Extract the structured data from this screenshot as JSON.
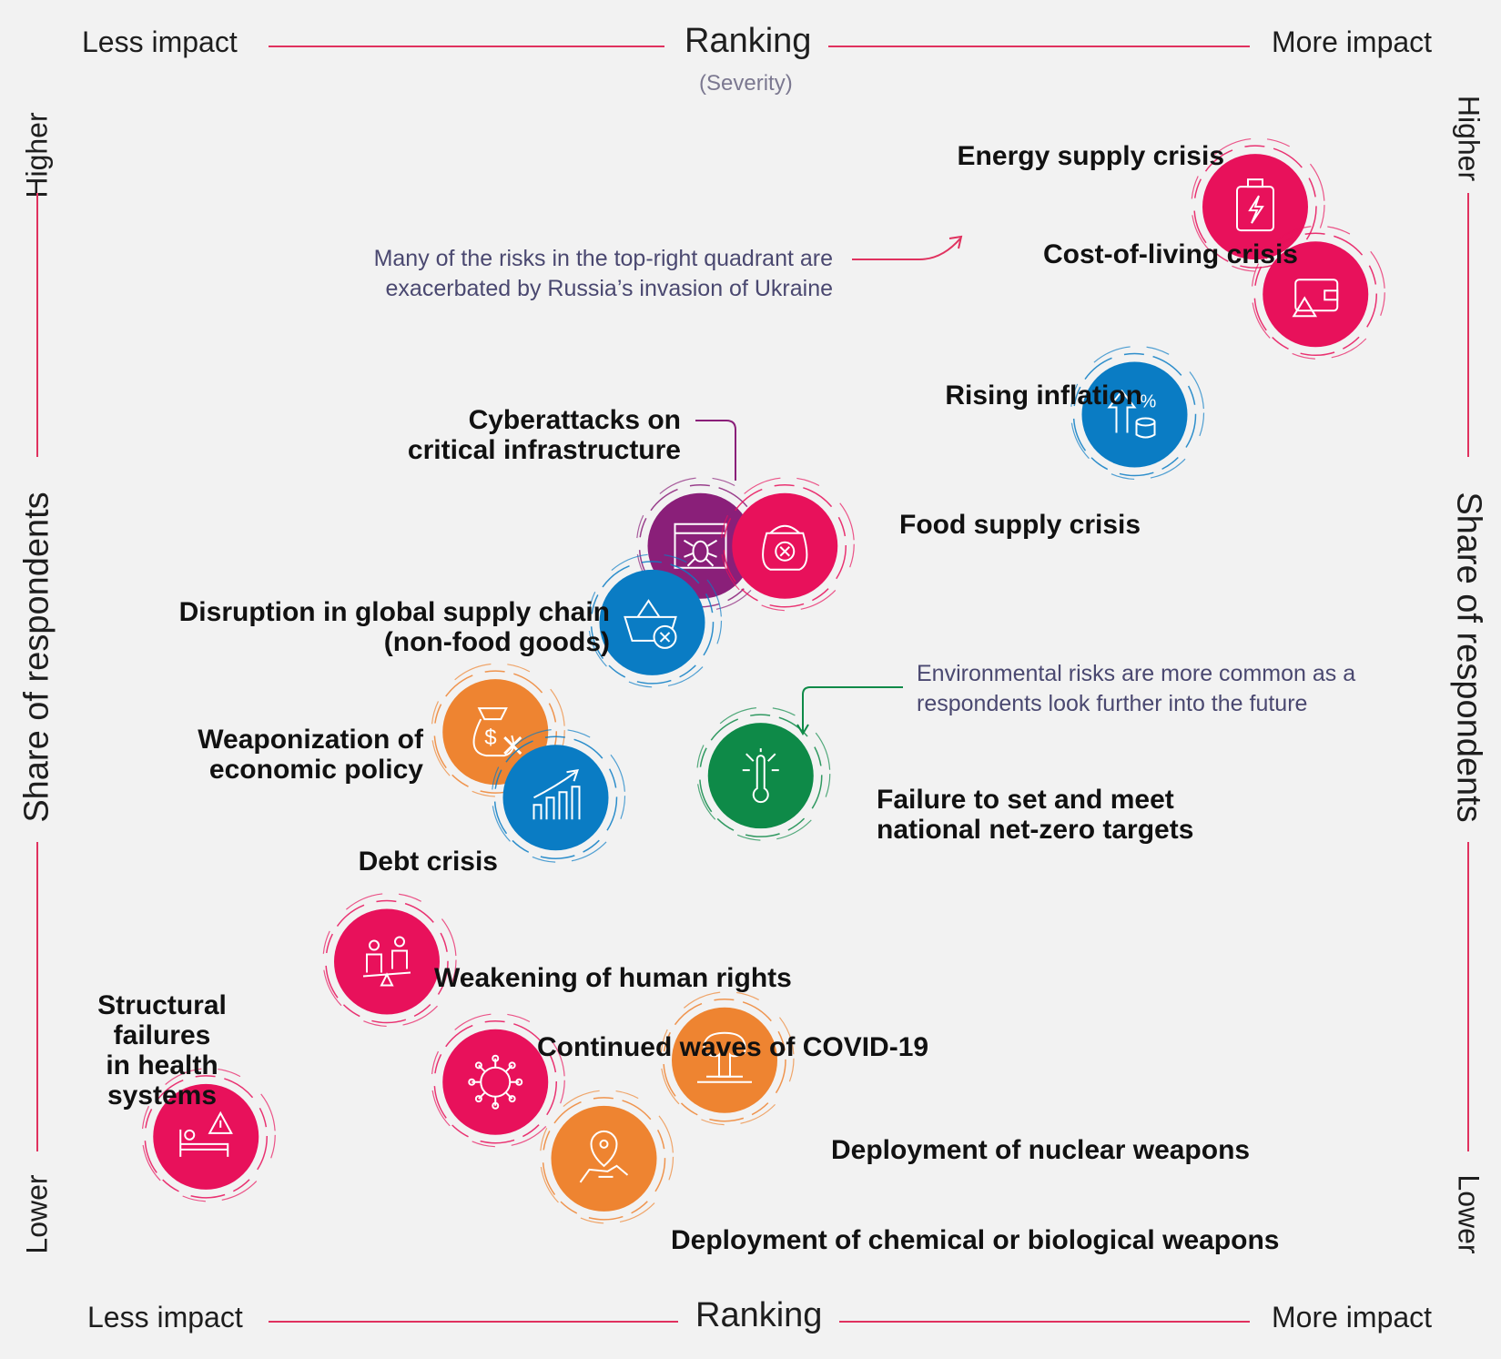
{
  "axes": {
    "top": {
      "title": "Ranking",
      "subtitle": "(Severity)",
      "left": "Less impact",
      "right": "More impact"
    },
    "bottom": {
      "title": "Ranking",
      "left": "Less impact",
      "right": "More impact"
    },
    "left": {
      "title": "Share of respondents",
      "top": "Higher",
      "bottom": "Lower"
    },
    "right": {
      "title": "Share of respondents",
      "top": "Higher",
      "bottom": "Lower"
    }
  },
  "annotations": {
    "ukraine": {
      "line1": "Many of the risks in the top-right quadrant are",
      "line2": "exacerbated by Russia’s invasion of Ukraine"
    },
    "environment": {
      "line1": "Environmental risks are more common as a",
      "line2": "respondents look further into the future"
    }
  },
  "colors": {
    "pink": "#e8115b",
    "blue": "#0a7cc4",
    "purple": "#8a1f79",
    "orange": "#ee8431",
    "green": "#0e8a48",
    "axis_line": "#e0325f"
  },
  "chart_data": {
    "type": "scatter",
    "x_axis": "Ranking (Severity): Less impact → More impact",
    "y_axis": "Share of respondents: Lower → Higher",
    "points": [
      {
        "id": "energy",
        "name": "Energy supply crisis",
        "x": 0.92,
        "y": 0.93,
        "color": "pink",
        "icon": "fuel-barrel-lightning-icon"
      },
      {
        "id": "cost",
        "name": "Cost-of-living crisis",
        "x": 0.97,
        "y": 0.85,
        "color": "pink",
        "icon": "wallet-warning-icon"
      },
      {
        "id": "inflation",
        "name": "Rising inflation",
        "x": 0.82,
        "y": 0.74,
        "color": "blue",
        "icon": "arrow-percent-coins-icon"
      },
      {
        "id": "cyber",
        "name": "Cyberattacks on critical infrastructure",
        "x": 0.46,
        "y": 0.62,
        "color": "purple",
        "icon": "bug-browser-icon"
      },
      {
        "id": "food",
        "name": "Food supply crisis",
        "x": 0.53,
        "y": 0.62,
        "color": "pink",
        "icon": "food-sack-x-icon"
      },
      {
        "id": "supply",
        "name": "Disruption in global supply chain (non-food goods)",
        "x": 0.42,
        "y": 0.55,
        "color": "blue",
        "icon": "basket-x-icon"
      },
      {
        "id": "weapon",
        "name": "Weaponization of economic policy",
        "x": 0.29,
        "y": 0.45,
        "color": "orange",
        "icon": "money-bag-x-icon"
      },
      {
        "id": "debt",
        "name": "Debt crisis",
        "x": 0.34,
        "y": 0.39,
        "color": "blue",
        "icon": "bar-chart-arrow-icon"
      },
      {
        "id": "netzero",
        "name": "Failure to set and meet national net-zero targets",
        "x": 0.51,
        "y": 0.41,
        "color": "green",
        "icon": "thermometer-burst-icon"
      },
      {
        "id": "rights",
        "name": "Weakening of human rights",
        "x": 0.2,
        "y": 0.24,
        "color": "pink",
        "icon": "people-balance-icon"
      },
      {
        "id": "health",
        "name": "Structural failures in health systems",
        "x": 0.05,
        "y": 0.08,
        "color": "pink",
        "icon": "hospital-bed-warning-icon"
      },
      {
        "id": "covid",
        "name": "Continued waves of COVID-19",
        "x": 0.29,
        "y": 0.13,
        "color": "pink",
        "icon": "virus-icon"
      },
      {
        "id": "nuclear",
        "name": "Deployment of nuclear weapons",
        "x": 0.48,
        "y": 0.15,
        "color": "orange",
        "icon": "mushroom-cloud-icon"
      },
      {
        "id": "chem",
        "name": "Deployment of chemical or biological weapons",
        "x": 0.38,
        "y": 0.06,
        "color": "orange",
        "icon": "biohazard-hand-icon"
      }
    ]
  },
  "labels": {
    "energy": "Energy supply crisis",
    "cost": "Cost-of-living crisis",
    "inflation": "Rising inflation",
    "cyber": [
      "Cyberattacks on",
      "critical infrastructure"
    ],
    "food": "Food supply crisis",
    "supply": [
      "Disruption in global supply chain",
      "(non-food goods)"
    ],
    "weapon": [
      "Weaponization of",
      "economic policy"
    ],
    "debt": "Debt crisis",
    "netzero": [
      "Failure to set and meet",
      "national net-zero targets"
    ],
    "rights": "Weakening of human rights",
    "health": [
      "Structural",
      "failures",
      "in health",
      "systems"
    ],
    "covid": "Continued waves of COVID-19",
    "nuclear": "Deployment of nuclear weapons",
    "chem": "Deployment of chemical or biological weapons"
  }
}
